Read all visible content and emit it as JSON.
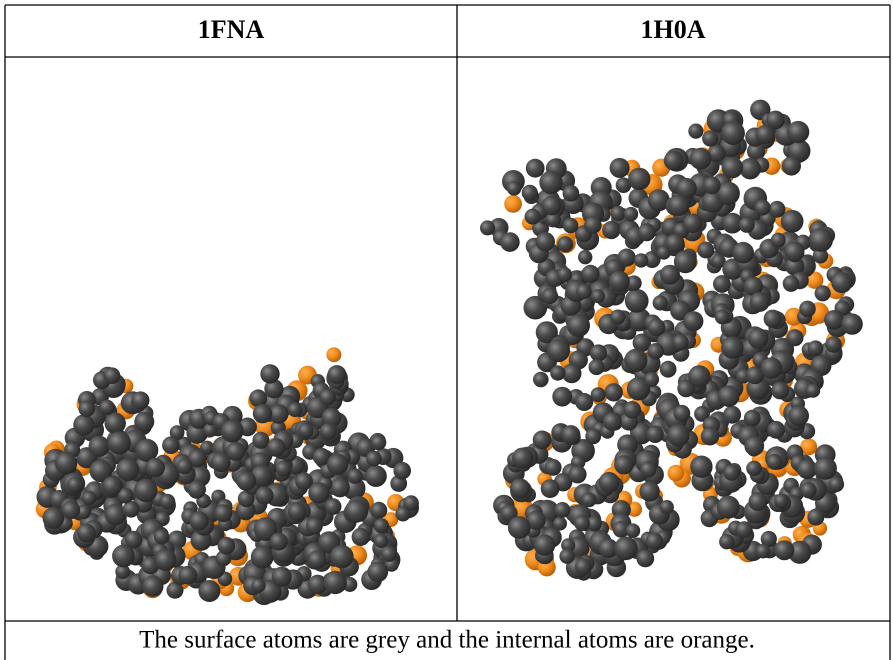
{
  "table": {
    "header": [
      "1FNA",
      "1H0A"
    ],
    "caption": "The surface atoms are grey and the internal atoms are orange."
  }
}
